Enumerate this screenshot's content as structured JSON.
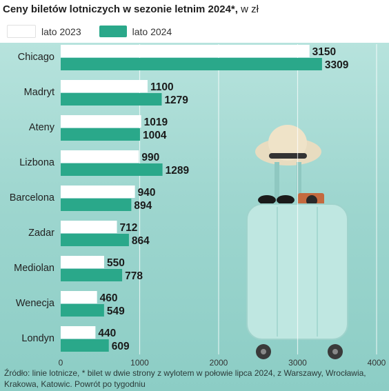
{
  "title": "Ceny biletów lotniczych w sezonie letnim 2024*,",
  "title_unit": " w zł",
  "source": "Źródło: linie lotnicze, * bilet w dwie strony z wylotem w połowie lipca 2024, z Warszawy, Wrocławia, Krakowa, Katowic. Powrót po tygodniu",
  "chart_data": {
    "type": "bar",
    "orientation": "horizontal",
    "categories": [
      "Chicago",
      "Madryt",
      "Ateny",
      "Lizbona",
      "Barcelona",
      "Zadar",
      "Mediolan",
      "Wenecja",
      "Londyn"
    ],
    "series": [
      {
        "name": "lato 2023",
        "color": "#ffffff",
        "values": [
          3150,
          1100,
          1019,
          990,
          940,
          712,
          550,
          460,
          440
        ]
      },
      {
        "name": "lato 2024",
        "color": "#2aa88a",
        "values": [
          3309,
          1279,
          1004,
          1289,
          894,
          864,
          778,
          549,
          609
        ]
      }
    ],
    "xlim": [
      0,
      4000
    ],
    "xticks": [
      0,
      1000,
      2000,
      3000,
      4000
    ],
    "grid": true,
    "legend": "top-left"
  }
}
